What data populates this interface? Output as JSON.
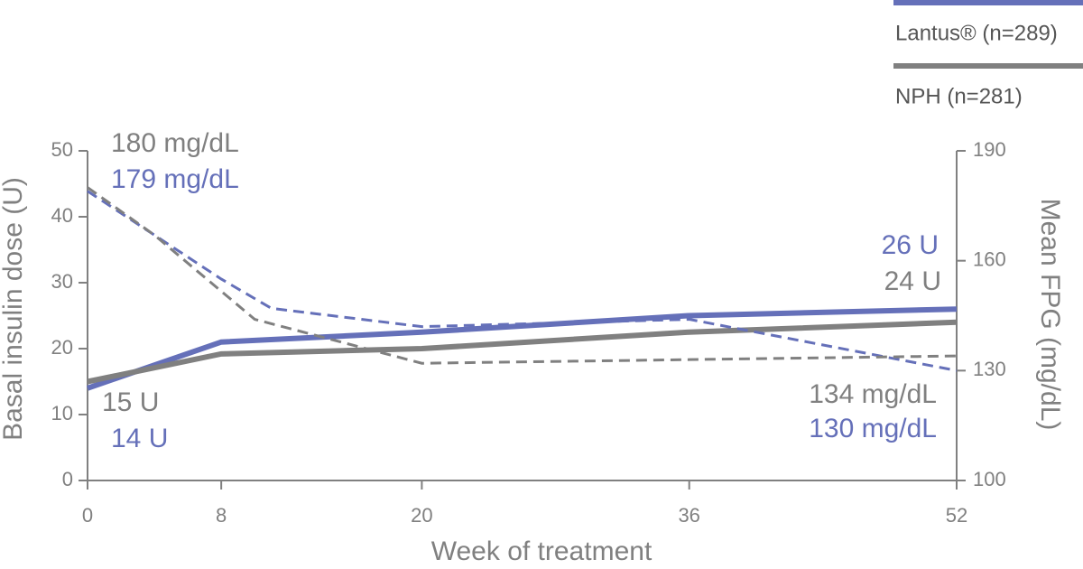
{
  "chart_data": {
    "type": "line",
    "xlabel": "Week of treatment",
    "ylabel": "Basal insulin dose (U)",
    "y2label": "Mean FPG (mg/dL)",
    "xlim": [
      0,
      52
    ],
    "xticks": [
      0,
      8,
      20,
      36,
      52
    ],
    "ylim": [
      0,
      50
    ],
    "yticks": [
      0,
      10,
      20,
      30,
      40,
      50
    ],
    "y2lim": [
      100,
      190
    ],
    "y2ticks": [
      100,
      130,
      160,
      190
    ],
    "series": [
      {
        "name": "Lantus® (n=289)",
        "color": "#6570b9",
        "style": "solid",
        "x": [
          0,
          8,
          20,
          36,
          52
        ],
        "values": [
          14,
          21,
          22.5,
          25,
          26
        ],
        "value_labels": [
          "14 U",
          null,
          null,
          null,
          "26 U"
        ]
      },
      {
        "name": "NPH (n=281)",
        "color": "#808080",
        "style": "solid",
        "x": [
          0,
          8,
          20,
          36,
          52
        ],
        "values": [
          15,
          19.2,
          20,
          22.5,
          24
        ],
        "value_labels": [
          "15 U",
          null,
          null,
          null,
          "24 U"
        ]
      },
      {
        "color": "#6570b9",
        "style": "dashed",
        "axis": "y2",
        "x": [
          0,
          8,
          11,
          20,
          36,
          52
        ],
        "values": [
          179,
          155,
          147,
          142,
          144,
          130
        ],
        "value_labels": [
          "179 mg/dL",
          null,
          null,
          null,
          null,
          "130 mg/dL"
        ]
      },
      {
        "color": "#808080",
        "style": "dashed",
        "axis": "y2",
        "x": [
          0,
          4,
          10,
          20,
          36,
          52
        ],
        "values": [
          180,
          167,
          144,
          132,
          133,
          134
        ],
        "value_labels": [
          "180 mg/dL",
          null,
          null,
          null,
          null,
          "134 mg/dL"
        ]
      }
    ]
  }
}
